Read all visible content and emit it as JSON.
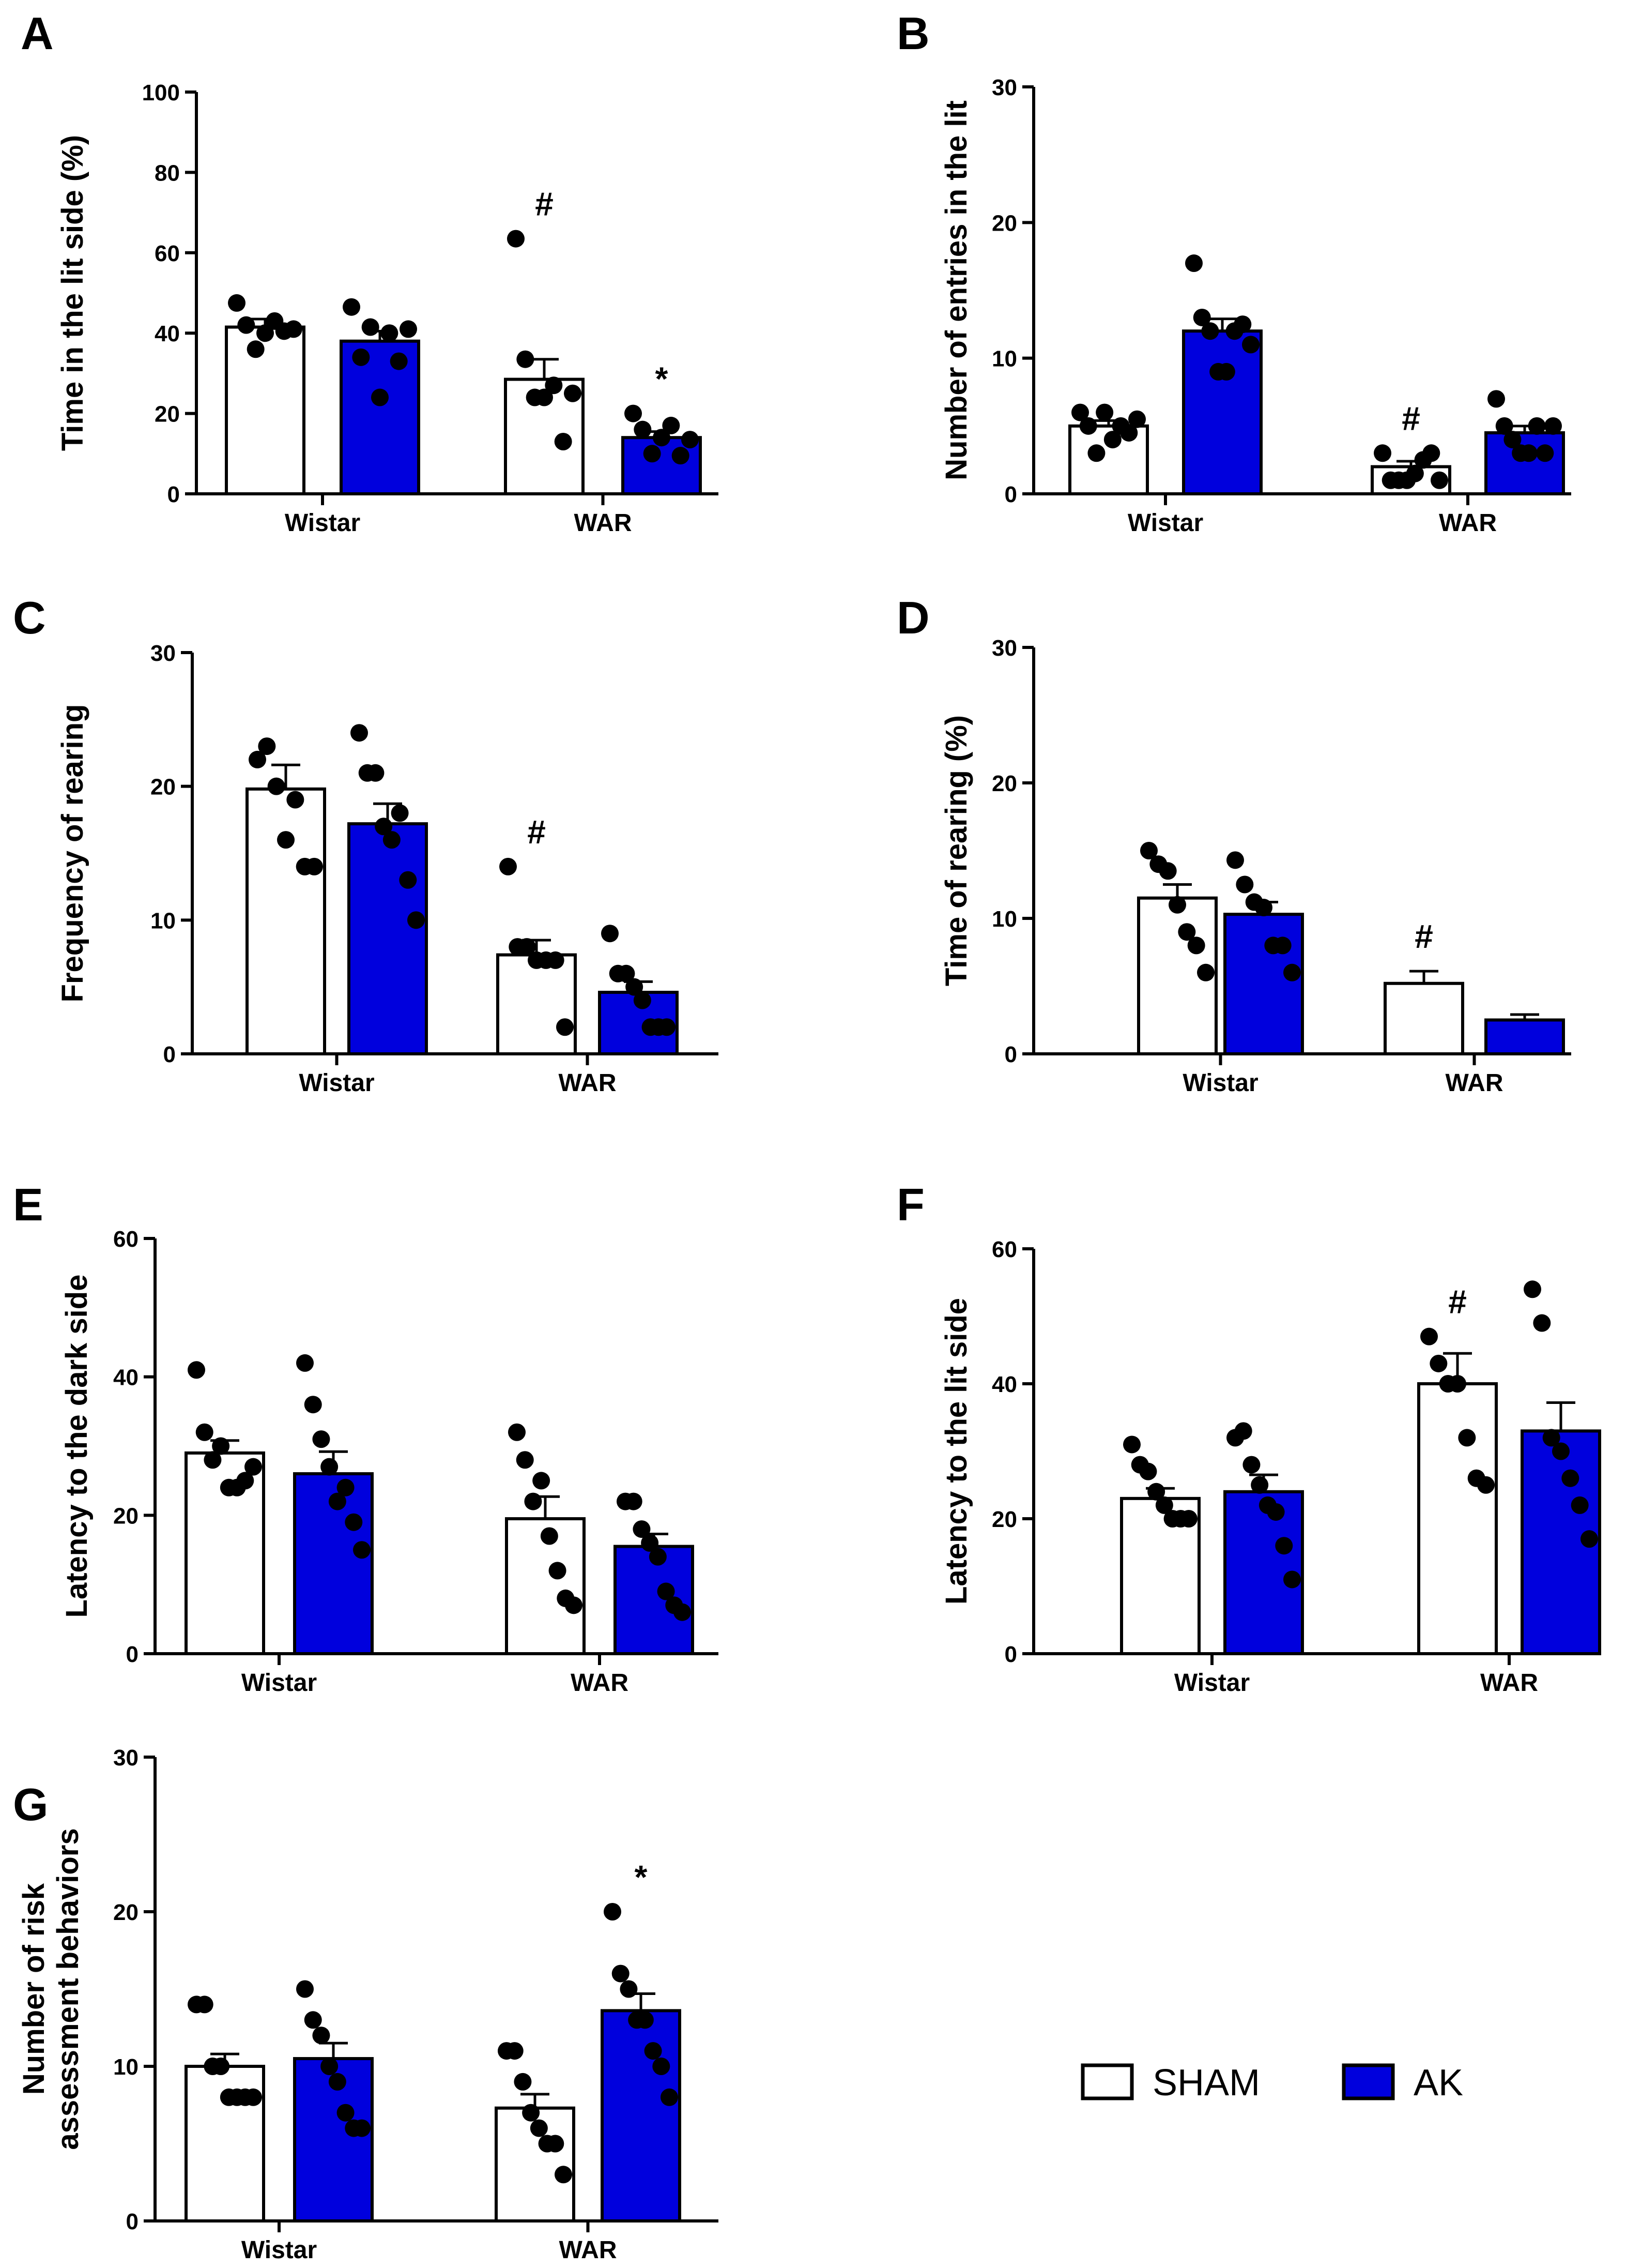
{
  "chart_data": [
    {
      "panel": "A",
      "type": "bar",
      "categories": [
        "Wistar",
        "WAR"
      ],
      "ylabel": [
        "Time in the lit side (%)"
      ],
      "ylim": [
        0,
        100
      ],
      "yticks": [
        0,
        20,
        40,
        60,
        80,
        100
      ],
      "series": [
        {
          "name": "SHAM",
          "values": [
            41.5,
            28.5
          ],
          "sem": [
            2,
            5
          ],
          "points": [
            [
              47.5,
              42,
              36,
              40,
              43,
              40.5,
              41
            ],
            [
              63.5,
              33.5,
              24,
              24,
              27,
              13,
              25
            ]
          ]
        },
        {
          "name": "AK",
          "values": [
            38,
            14
          ],
          "sem": [
            2.5,
            1.5
          ],
          "points": [
            [
              46.5,
              34,
              41.5,
              24,
              40,
              33,
              41
            ],
            [
              20,
              16,
              10,
              14,
              17,
              9.5,
              13.5
            ]
          ]
        }
      ],
      "annotations": [
        {
          "group": 1,
          "series": 0,
          "text": "#"
        },
        {
          "group": 1,
          "series": 1,
          "text": "*"
        }
      ]
    },
    {
      "panel": "B",
      "type": "bar",
      "categories": [
        "Wistar",
        "WAR"
      ],
      "ylabel": [
        "Number of entries in the lit"
      ],
      "ylim": [
        0,
        30
      ],
      "yticks": [
        0,
        10,
        20,
        30
      ],
      "series": [
        {
          "name": "SHAM",
          "values": [
            5,
            2
          ],
          "sem": [
            0.4,
            0.4
          ],
          "points": [
            [
              6,
              5,
              3,
              6,
              4,
              5,
              4.5,
              5.5
            ],
            [
              3,
              1,
              1,
              1,
              1.5,
              2.5,
              3,
              1
            ]
          ]
        },
        {
          "name": "AK",
          "values": [
            12,
            4.5
          ],
          "sem": [
            0.9,
            0.5
          ],
          "points": [
            [
              17,
              13,
              12,
              9,
              9,
              12,
              12.5,
              11
            ],
            [
              7,
              5,
              4,
              3,
              3,
              5,
              3,
              5
            ]
          ]
        }
      ],
      "annotations": [
        {
          "group": 1,
          "series": 0,
          "text": "#"
        }
      ]
    },
    {
      "panel": "C",
      "type": "bar",
      "categories": [
        "Wistar",
        "WAR"
      ],
      "ylabel": [
        "Frequency of rearing"
      ],
      "ylim": [
        0,
        30
      ],
      "yticks": [
        0,
        10,
        20,
        30
      ],
      "series": [
        {
          "name": "SHAM",
          "values": [
            19.8,
            7.4
          ],
          "sem": [
            1.8,
            1.1
          ],
          "points": [
            [
              22,
              23,
              20,
              16,
              19,
              14,
              14
            ],
            [
              14,
              8,
              8,
              7,
              7,
              7,
              2
            ]
          ]
        },
        {
          "name": "AK",
          "values": [
            17.2,
            4.6
          ],
          "sem": [
            1.5,
            0.8
          ],
          "points": [
            [
              24,
              21,
              21,
              17,
              16,
              18,
              13,
              10
            ],
            [
              9,
              6,
              6,
              5,
              4,
              2,
              2,
              2
            ]
          ]
        }
      ],
      "annotations": [
        {
          "group": 1,
          "series": 0,
          "text": "#"
        }
      ]
    },
    {
      "panel": "D",
      "type": "bar",
      "categories": [
        "Wistar",
        "WAR"
      ],
      "ylabel": [
        "Time of rearing (%)"
      ],
      "ylim": [
        0,
        30
      ],
      "yticks": [
        0,
        10,
        20,
        30
      ],
      "series": [
        {
          "name": "SHAM",
          "values": [
            11.5,
            5.2
          ],
          "sem": [
            1,
            0.9
          ],
          "points": [
            [
              15,
              14,
              13.5,
              11,
              9,
              8,
              6
            ]
          ]
        },
        {
          "name": "AK",
          "values": [
            10.3,
            2.5
          ],
          "sem": [
            0.9,
            0.4
          ],
          "points": [
            [
              14.3,
              12.5,
              11.2,
              10.8,
              8,
              8,
              6
            ]
          ]
        }
      ],
      "annotations": [
        {
          "group": 1,
          "series": 0,
          "text": "#"
        }
      ]
    },
    {
      "panel": "E",
      "type": "bar",
      "categories": [
        "Wistar",
        "WAR"
      ],
      "ylabel": [
        "Latency to the dark side"
      ],
      "ylim": [
        0,
        60
      ],
      "yticks": [
        0,
        20,
        40,
        60
      ],
      "series": [
        {
          "name": "SHAM",
          "values": [
            29,
            19.5
          ],
          "sem": [
            1.8,
            3.2
          ],
          "points": [
            [
              41,
              32,
              28,
              30,
              24,
              24,
              25,
              27
            ],
            [
              32,
              28,
              22,
              25,
              17,
              12,
              8,
              7
            ]
          ]
        },
        {
          "name": "AK",
          "values": [
            26,
            15.5
          ],
          "sem": [
            3.2,
            1.8
          ],
          "points": [
            [
              42,
              36,
              31,
              27,
              22,
              24,
              19,
              15
            ],
            [
              22,
              22,
              18,
              16,
              14,
              9,
              7,
              6
            ]
          ]
        }
      ],
      "annotations": []
    },
    {
      "panel": "F",
      "type": "bar",
      "categories": [
        "Wistar",
        "WAR"
      ],
      "ylabel": [
        "Latency to the lit side"
      ],
      "ylim": [
        0,
        60
      ],
      "yticks": [
        0,
        20,
        40,
        60
      ],
      "series": [
        {
          "name": "SHAM",
          "values": [
            23,
            40
          ],
          "sem": [
            1.5,
            4.5
          ],
          "points": [
            [
              31,
              28,
              27,
              24,
              22,
              20,
              20,
              20
            ],
            [
              47,
              43,
              40,
              40,
              32,
              26,
              25
            ]
          ]
        },
        {
          "name": "AK",
          "values": [
            24,
            33
          ],
          "sem": [
            2.5,
            4.2
          ],
          "points": [
            [
              32,
              33,
              28,
              25,
              22,
              21,
              16,
              11
            ],
            [
              54,
              49,
              32,
              30,
              26,
              22,
              17
            ]
          ]
        }
      ],
      "annotations": [
        {
          "group": 1,
          "series": 0,
          "text": "#"
        }
      ]
    },
    {
      "panel": "G",
      "type": "bar",
      "categories": [
        "Wistar",
        "WAR"
      ],
      "ylabel": [
        "Number of risk",
        "assessment behaviors"
      ],
      "ylim": [
        0,
        30
      ],
      "yticks": [
        0,
        10,
        20,
        30
      ],
      "series": [
        {
          "name": "SHAM",
          "values": [
            10,
            7.3
          ],
          "sem": [
            0.8,
            0.9
          ],
          "points": [
            [
              14,
              14,
              10,
              10,
              8,
              8,
              8,
              8
            ],
            [
              11,
              11,
              9,
              7,
              6,
              5,
              5,
              3
            ]
          ]
        },
        {
          "name": "AK",
          "values": [
            10.5,
            13.6
          ],
          "sem": [
            1,
            1.1
          ],
          "points": [
            [
              15,
              13,
              12,
              10,
              9,
              7,
              6,
              6
            ],
            [
              20,
              16,
              15,
              13,
              13,
              11,
              10,
              8
            ]
          ]
        }
      ],
      "annotations": [
        {
          "group": 1,
          "series": 1,
          "text": "*"
        }
      ]
    }
  ],
  "legend": {
    "items": [
      {
        "label": "SHAM",
        "color": "#ffffff"
      },
      {
        "label": "AK",
        "color": "#0000dd"
      }
    ]
  },
  "colors": {
    "sham": "#ffffff",
    "ak": "#0000dd",
    "stroke": "#000000"
  }
}
